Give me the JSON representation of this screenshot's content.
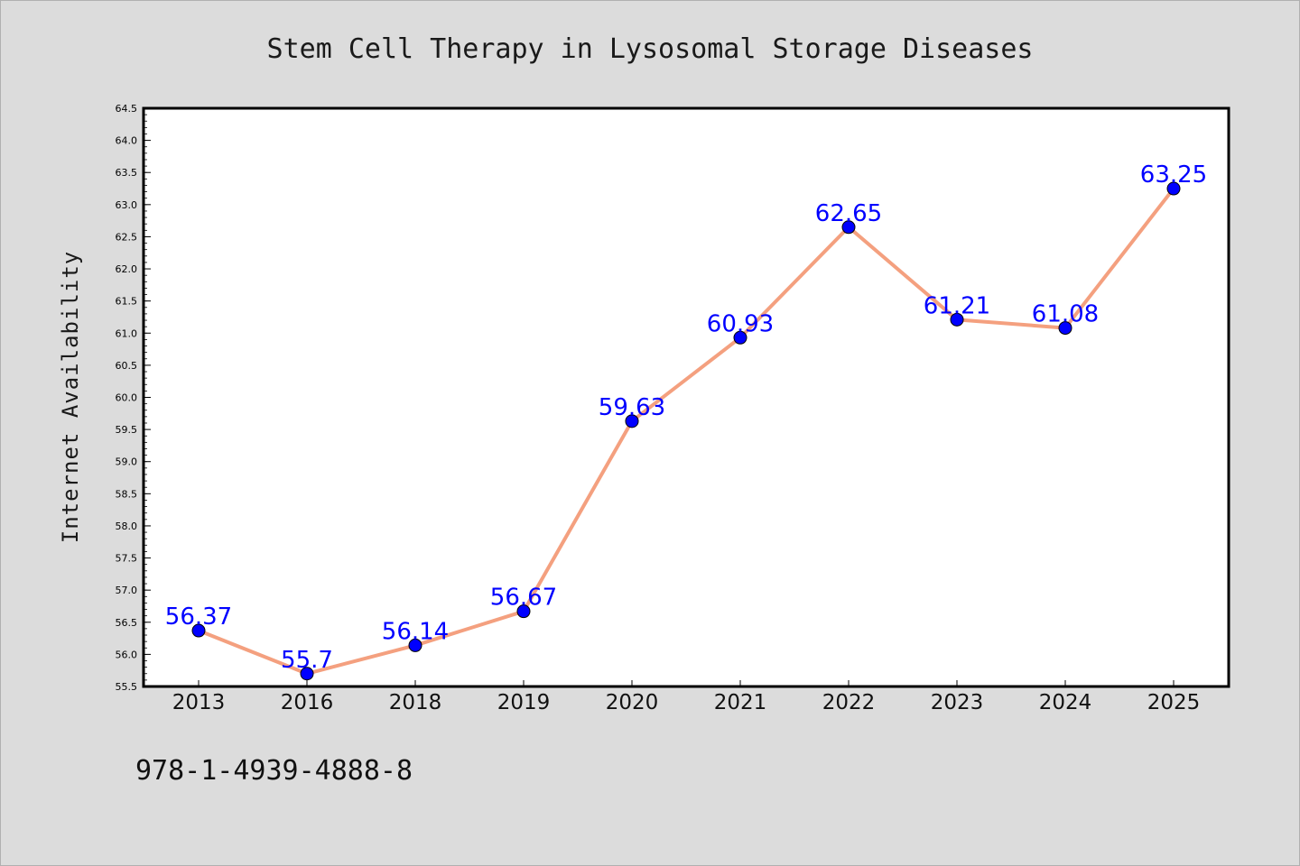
{
  "chart_data": {
    "type": "line",
    "title": "Stem Cell Therapy in Lysosomal Storage Diseases",
    "xlabel": "",
    "ylabel": "Internet Availability",
    "categories": [
      "2013",
      "2016",
      "2018",
      "2019",
      "2020",
      "2021",
      "2022",
      "2023",
      "2024",
      "2025"
    ],
    "values": [
      56.37,
      55.7,
      56.14,
      56.67,
      59.63,
      60.93,
      62.65,
      61.21,
      61.08,
      63.25
    ],
    "data_labels": [
      "56.37",
      "55.7",
      "56.14",
      "56.67",
      "59.63",
      "60.93",
      "62.65",
      "61.21",
      "61.08",
      "63.25"
    ],
    "ylim": [
      55.5,
      64.5
    ],
    "yticks": [
      "55.5",
      "56.0",
      "56.5",
      "57.0",
      "57.5",
      "58.0",
      "58.5",
      "59.0",
      "59.5",
      "60.0",
      "60.5",
      "61.0",
      "61.5",
      "62.0",
      "62.5",
      "63.0",
      "63.5",
      "64.0",
      "64.5"
    ],
    "grid": false,
    "colors": {
      "line": "#f4a07f",
      "marker": "#0000ff",
      "label": "#0000ff"
    }
  },
  "footnote": "978-1-4939-4888-8"
}
